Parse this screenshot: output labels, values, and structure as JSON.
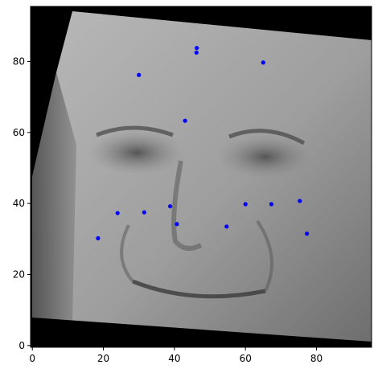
{
  "chart_data": {
    "type": "scatter",
    "title": "",
    "xlabel": "",
    "ylabel": "",
    "background": "grayscale face image",
    "xlim": [
      -0.5,
      95.5
    ],
    "ylim": [
      95.5,
      -0.5
    ],
    "y_axis_inverted": true,
    "grid": false,
    "legend": "none",
    "x_ticks": [
      {
        "value": 0,
        "label": "0"
      },
      {
        "value": 20,
        "label": "20"
      },
      {
        "value": 40,
        "label": "40"
      },
      {
        "value": 60,
        "label": "60"
      },
      {
        "value": 80,
        "label": "80"
      }
    ],
    "y_ticks": [
      {
        "value": 0,
        "label": "0"
      },
      {
        "value": 20,
        "label": "20"
      },
      {
        "value": 40,
        "label": "40"
      },
      {
        "value": 60,
        "label": "60"
      },
      {
        "value": 80,
        "label": "80"
      }
    ],
    "series": [
      {
        "color": "#0000ff",
        "points": [
          {
            "x": 18.5,
            "y": 30.2
          },
          {
            "x": 24.0,
            "y": 37.3
          },
          {
            "x": 31.5,
            "y": 37.5
          },
          {
            "x": 38.8,
            "y": 39.2
          },
          {
            "x": 40.7,
            "y": 34.2
          },
          {
            "x": 54.7,
            "y": 33.5
          },
          {
            "x": 60.0,
            "y": 39.8
          },
          {
            "x": 67.3,
            "y": 39.8
          },
          {
            "x": 75.3,
            "y": 40.7
          },
          {
            "x": 77.3,
            "y": 31.5
          },
          {
            "x": 43.0,
            "y": 63.3
          },
          {
            "x": 30.0,
            "y": 76.2
          },
          {
            "x": 46.2,
            "y": 82.5
          },
          {
            "x": 46.3,
            "y": 83.8
          },
          {
            "x": 65.0,
            "y": 79.7
          }
        ]
      }
    ]
  },
  "colors": {
    "marker": "#0000ff",
    "axes": "#000000",
    "image_dark": "#000000"
  }
}
